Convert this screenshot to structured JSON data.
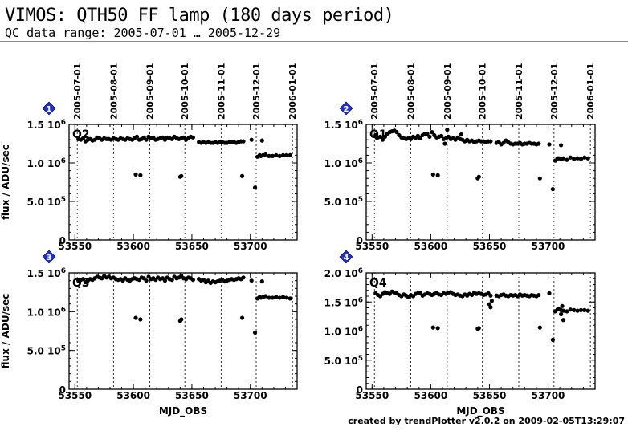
{
  "header": {
    "title": "VIMOS: QTH50 FF lamp (180 days period)",
    "subtitle": "QC data range: 2005-07-01 … 2005-12-29"
  },
  "footer": "created by trendPlotter v2.0.2 on 2009-02-05T13:29:07",
  "chart_data": [
    {
      "type": "scatter",
      "panel": "1",
      "label": "Q2",
      "xlabel": "",
      "ylabel": "flux / ADU/sec",
      "xlim": [
        53545,
        53740
      ],
      "ylim": [
        0,
        1500000
      ],
      "yticks": [
        0,
        500000,
        1000000,
        1500000
      ],
      "ytick_labels": [
        "0",
        "5.0 10^5",
        "1.0 10^6",
        "1.5 10^6"
      ],
      "xticks": [
        53550,
        53600,
        53650,
        53700
      ],
      "date_ticks": [
        {
          "mjd": 53552,
          "label": "2005-07-01"
        },
        {
          "mjd": 53583,
          "label": "2005-08-01"
        },
        {
          "mjd": 53614,
          "label": "2005-09-01"
        },
        {
          "mjd": 53644,
          "label": "2005-10-01"
        },
        {
          "mjd": 53675,
          "label": "2005-11-01"
        },
        {
          "mjd": 53705,
          "label": "2005-12-01"
        },
        {
          "mjd": 53736,
          "label": "2006-01-01"
        }
      ],
      "x": [
        53553,
        53555,
        53557,
        53559,
        53561,
        53563,
        53565,
        53567,
        53569,
        53571,
        53573,
        53575,
        53577,
        53579,
        53581,
        53583,
        53585,
        53587,
        53589,
        53591,
        53593,
        53595,
        53597,
        53599,
        53601,
        53603,
        53605,
        53607,
        53609,
        53611,
        53613,
        53615,
        53617,
        53619,
        53621,
        53623,
        53625,
        53627,
        53629,
        53631,
        53633,
        53635,
        53637,
        53639,
        53641,
        53643,
        53645,
        53647,
        53649,
        53651,
        53656,
        53658,
        53660,
        53662,
        53664,
        53666,
        53668,
        53670,
        53672,
        53674,
        53676,
        53678,
        53680,
        53682,
        53684,
        53686,
        53688,
        53690,
        53692,
        53694,
        53602,
        53606,
        53640,
        53641,
        53693,
        53704,
        53706,
        53708,
        53709,
        53711,
        53713,
        53716,
        53719,
        53722,
        53725,
        53728,
        53731,
        53734,
        53701,
        53710
      ],
      "y": [
        1310000,
        1300000,
        1320000,
        1280000,
        1300000,
        1310000,
        1290000,
        1300000,
        1330000,
        1320000,
        1300000,
        1320000,
        1310000,
        1310000,
        1300000,
        1320000,
        1310000,
        1300000,
        1320000,
        1310000,
        1300000,
        1320000,
        1310000,
        1300000,
        1320000,
        1340000,
        1300000,
        1310000,
        1330000,
        1300000,
        1340000,
        1320000,
        1330000,
        1300000,
        1310000,
        1320000,
        1330000,
        1300000,
        1330000,
        1320000,
        1310000,
        1340000,
        1320000,
        1310000,
        1320000,
        1330000,
        1300000,
        1320000,
        1340000,
        1330000,
        1270000,
        1260000,
        1270000,
        1260000,
        1270000,
        1260000,
        1260000,
        1270000,
        1260000,
        1270000,
        1270000,
        1260000,
        1260000,
        1270000,
        1270000,
        1270000,
        1260000,
        1270000,
        1280000,
        1280000,
        850000,
        840000,
        820000,
        830000,
        830000,
        680000,
        1080000,
        1100000,
        1090000,
        1100000,
        1110000,
        1090000,
        1090000,
        1100000,
        1090000,
        1100000,
        1100000,
        1100000,
        1300000,
        1290000
      ]
    },
    {
      "type": "scatter",
      "panel": "2",
      "label": "Q1",
      "xlabel": "",
      "ylabel": "",
      "xlim": [
        53545,
        53740
      ],
      "ylim": [
        0,
        1500000
      ],
      "yticks": [
        0,
        500000,
        1000000,
        1500000
      ],
      "ytick_labels": [
        "0",
        "5.0 10^5",
        "1.0 10^6",
        "1.5 10^6"
      ],
      "xticks": [
        53550,
        53600,
        53650,
        53700
      ],
      "date_ticks": [
        {
          "mjd": 53552,
          "label": "2005-07-01"
        },
        {
          "mjd": 53583,
          "label": "2005-08-01"
        },
        {
          "mjd": 53614,
          "label": "2005-09-01"
        },
        {
          "mjd": 53644,
          "label": "2005-10-01"
        },
        {
          "mjd": 53675,
          "label": "2005-11-01"
        },
        {
          "mjd": 53705,
          "label": "2005-12-01"
        },
        {
          "mjd": 53736,
          "label": "2006-01-01"
        }
      ],
      "x": [
        53553,
        53555,
        53557,
        53559,
        53561,
        53563,
        53565,
        53567,
        53569,
        53571,
        53573,
        53575,
        53577,
        53579,
        53581,
        53583,
        53585,
        53587,
        53589,
        53591,
        53593,
        53595,
        53597,
        53599,
        53601,
        53603,
        53605,
        53607,
        53609,
        53611,
        53613,
        53615,
        53617,
        53619,
        53621,
        53623,
        53625,
        53627,
        53629,
        53631,
        53633,
        53635,
        53637,
        53639,
        53641,
        53643,
        53645,
        53647,
        53649,
        53651,
        53656,
        53658,
        53660,
        53662,
        53664,
        53666,
        53668,
        53670,
        53672,
        53674,
        53676,
        53678,
        53680,
        53682,
        53684,
        53686,
        53688,
        53690,
        53692,
        53614,
        53612,
        53626,
        53602,
        53606,
        53640,
        53641,
        53693,
        53704,
        53706,
        53708,
        53709,
        53711,
        53713,
        53716,
        53719,
        53722,
        53725,
        53728,
        53731,
        53734,
        53701,
        53711
      ],
      "y": [
        1360000,
        1330000,
        1340000,
        1300000,
        1340000,
        1380000,
        1400000,
        1410000,
        1420000,
        1400000,
        1360000,
        1330000,
        1320000,
        1310000,
        1320000,
        1310000,
        1340000,
        1320000,
        1350000,
        1320000,
        1360000,
        1380000,
        1380000,
        1340000,
        1400000,
        1360000,
        1330000,
        1340000,
        1350000,
        1310000,
        1320000,
        1340000,
        1310000,
        1320000,
        1300000,
        1330000,
        1310000,
        1300000,
        1280000,
        1300000,
        1280000,
        1290000,
        1270000,
        1280000,
        1290000,
        1280000,
        1280000,
        1270000,
        1280000,
        1280000,
        1260000,
        1270000,
        1240000,
        1260000,
        1290000,
        1270000,
        1250000,
        1240000,
        1250000,
        1250000,
        1260000,
        1240000,
        1250000,
        1250000,
        1260000,
        1250000,
        1250000,
        1240000,
        1250000,
        1430000,
        1250000,
        1370000,
        850000,
        840000,
        800000,
        820000,
        800000,
        660000,
        1030000,
        1060000,
        1060000,
        1050000,
        1060000,
        1040000,
        1070000,
        1050000,
        1060000,
        1050000,
        1070000,
        1060000,
        1240000,
        1230000
      ]
    },
    {
      "type": "scatter",
      "panel": "3",
      "label": "Q3",
      "xlabel": "MJD_OBS",
      "ylabel": "flux / ADU/sec",
      "xlim": [
        53545,
        53740
      ],
      "ylim": [
        0,
        1500000
      ],
      "yticks": [
        0,
        500000,
        1000000,
        1500000
      ],
      "ytick_labels": [
        "0",
        "5.0 10^5",
        "1.0 10^6",
        "1.5 10^6"
      ],
      "xticks": [
        53550,
        53600,
        53650,
        53700
      ],
      "date_ticks": [
        {
          "mjd": 53552,
          "label": ""
        },
        {
          "mjd": 53583,
          "label": ""
        },
        {
          "mjd": 53614,
          "label": ""
        },
        {
          "mjd": 53644,
          "label": ""
        },
        {
          "mjd": 53675,
          "label": ""
        },
        {
          "mjd": 53705,
          "label": ""
        },
        {
          "mjd": 53736,
          "label": ""
        }
      ],
      "x": [
        53553,
        53555,
        53557,
        53559,
        53561,
        53563,
        53565,
        53567,
        53569,
        53571,
        53573,
        53575,
        53577,
        53579,
        53581,
        53583,
        53585,
        53587,
        53589,
        53591,
        53593,
        53595,
        53597,
        53599,
        53601,
        53603,
        53605,
        53607,
        53609,
        53611,
        53613,
        53615,
        53617,
        53619,
        53621,
        53623,
        53625,
        53627,
        53629,
        53631,
        53633,
        53635,
        53637,
        53639,
        53641,
        53643,
        53645,
        53647,
        53649,
        53651,
        53656,
        53658,
        53660,
        53662,
        53664,
        53666,
        53668,
        53670,
        53672,
        53674,
        53676,
        53678,
        53680,
        53682,
        53684,
        53686,
        53688,
        53690,
        53692,
        53694,
        53602,
        53606,
        53640,
        53641,
        53693,
        53704,
        53706,
        53708,
        53709,
        53711,
        53713,
        53716,
        53719,
        53722,
        53725,
        53728,
        53731,
        53734,
        53701,
        53710
      ],
      "y": [
        1400000,
        1410000,
        1420000,
        1380000,
        1400000,
        1420000,
        1410000,
        1430000,
        1450000,
        1440000,
        1430000,
        1460000,
        1440000,
        1450000,
        1430000,
        1440000,
        1420000,
        1410000,
        1420000,
        1400000,
        1430000,
        1410000,
        1400000,
        1420000,
        1430000,
        1420000,
        1410000,
        1440000,
        1430000,
        1400000,
        1450000,
        1420000,
        1430000,
        1410000,
        1440000,
        1420000,
        1430000,
        1400000,
        1440000,
        1420000,
        1410000,
        1450000,
        1430000,
        1440000,
        1460000,
        1430000,
        1420000,
        1440000,
        1430000,
        1410000,
        1420000,
        1400000,
        1410000,
        1380000,
        1400000,
        1370000,
        1390000,
        1380000,
        1390000,
        1400000,
        1410000,
        1390000,
        1400000,
        1410000,
        1420000,
        1410000,
        1420000,
        1430000,
        1420000,
        1440000,
        920000,
        900000,
        880000,
        900000,
        920000,
        730000,
        1170000,
        1190000,
        1180000,
        1190000,
        1200000,
        1180000,
        1180000,
        1190000,
        1180000,
        1190000,
        1180000,
        1170000,
        1400000,
        1390000
      ]
    },
    {
      "type": "scatter",
      "panel": "4",
      "label": "Q4",
      "xlabel": "MJD_OBS",
      "ylabel": "",
      "xlim": [
        53545,
        53740
      ],
      "ylim": [
        0,
        2000000
      ],
      "yticks": [
        0,
        500000,
        1000000,
        1500000,
        2000000
      ],
      "ytick_labels": [
        "0",
        "5.0 10^5",
        "1.0 10^6",
        "1.5 10^6",
        "2.0 10^6"
      ],
      "xticks": [
        53550,
        53600,
        53650,
        53700
      ],
      "date_ticks": [
        {
          "mjd": 53552,
          "label": ""
        },
        {
          "mjd": 53583,
          "label": ""
        },
        {
          "mjd": 53614,
          "label": ""
        },
        {
          "mjd": 53644,
          "label": ""
        },
        {
          "mjd": 53675,
          "label": ""
        },
        {
          "mjd": 53705,
          "label": ""
        },
        {
          "mjd": 53736,
          "label": ""
        }
      ],
      "x": [
        53553,
        53555,
        53557,
        53559,
        53561,
        53563,
        53565,
        53567,
        53569,
        53571,
        53573,
        53575,
        53577,
        53579,
        53581,
        53583,
        53585,
        53587,
        53589,
        53591,
        53593,
        53595,
        53597,
        53599,
        53601,
        53603,
        53605,
        53607,
        53609,
        53611,
        53613,
        53615,
        53617,
        53619,
        53621,
        53623,
        53625,
        53627,
        53629,
        53631,
        53633,
        53635,
        53637,
        53639,
        53641,
        53643,
        53645,
        53647,
        53649,
        53651,
        53656,
        53658,
        53660,
        53662,
        53664,
        53666,
        53668,
        53670,
        53672,
        53674,
        53676,
        53678,
        53680,
        53682,
        53684,
        53686,
        53688,
        53690,
        53692,
        53652,
        53651,
        53650,
        53602,
        53606,
        53640,
        53641,
        53693,
        53704,
        53706,
        53708,
        53709,
        53711,
        53713,
        53716,
        53719,
        53722,
        53725,
        53728,
        53731,
        53734,
        53712,
        53711,
        53713,
        53701
      ],
      "y": [
        1650000,
        1620000,
        1600000,
        1640000,
        1670000,
        1650000,
        1640000,
        1680000,
        1660000,
        1650000,
        1620000,
        1600000,
        1630000,
        1610000,
        1580000,
        1620000,
        1600000,
        1640000,
        1650000,
        1660000,
        1610000,
        1630000,
        1650000,
        1640000,
        1620000,
        1640000,
        1660000,
        1630000,
        1620000,
        1650000,
        1640000,
        1660000,
        1670000,
        1640000,
        1620000,
        1630000,
        1610000,
        1600000,
        1630000,
        1610000,
        1640000,
        1620000,
        1660000,
        1640000,
        1650000,
        1640000,
        1620000,
        1630000,
        1650000,
        1610000,
        1610000,
        1600000,
        1620000,
        1630000,
        1610000,
        1600000,
        1620000,
        1610000,
        1620000,
        1600000,
        1630000,
        1610000,
        1620000,
        1610000,
        1600000,
        1620000,
        1610000,
        1600000,
        1620000,
        1520000,
        1410000,
        1460000,
        1060000,
        1050000,
        1040000,
        1050000,
        1060000,
        850000,
        1340000,
        1370000,
        1380000,
        1360000,
        1350000,
        1340000,
        1370000,
        1360000,
        1350000,
        1360000,
        1360000,
        1350000,
        1430000,
        1290000,
        1190000,
        1650000
      ]
    }
  ]
}
